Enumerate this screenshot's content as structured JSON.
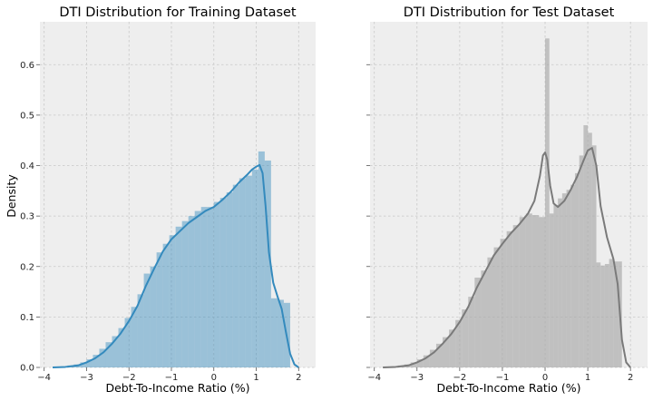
{
  "chart_data": [
    {
      "type": "bar",
      "title": "DTI Distribution for Training Dataset",
      "xlabel": "Debt-To-Income Ratio (%)",
      "ylabel": "Density",
      "xlim": [
        -4.1,
        2.4
      ],
      "ylim": [
        0,
        0.685
      ],
      "xticks": [
        -4,
        -3,
        -2,
        -1,
        0,
        1,
        2
      ],
      "yticks": [
        0.0,
        0.1,
        0.2,
        0.3,
        0.4,
        0.5,
        0.6
      ],
      "grid": true,
      "bar_color": "#348abd",
      "line_color": "#348abd",
      "histogram": {
        "x": [
          -3.75,
          -3.6,
          -3.45,
          -3.3,
          -3.15,
          -3.0,
          -2.85,
          -2.7,
          -2.55,
          -2.4,
          -2.25,
          -2.1,
          -1.95,
          -1.8,
          -1.65,
          -1.5,
          -1.35,
          -1.2,
          -1.05,
          -0.9,
          -0.75,
          -0.6,
          -0.45,
          -0.3,
          -0.15,
          0.0,
          0.15,
          0.3,
          0.45,
          0.6,
          0.75,
          0.9,
          1.05,
          1.2,
          1.35,
          1.5,
          1.65
        ],
        "width": 0.15,
        "values": [
          0.001,
          0.002,
          0.004,
          0.006,
          0.01,
          0.016,
          0.025,
          0.037,
          0.05,
          0.062,
          0.078,
          0.098,
          0.12,
          0.145,
          0.186,
          0.2,
          0.228,
          0.245,
          0.262,
          0.279,
          0.29,
          0.3,
          0.31,
          0.318,
          0.318,
          0.328,
          0.336,
          0.347,
          0.362,
          0.375,
          0.38,
          0.392,
          0.428,
          0.41,
          0.137,
          0.134,
          0.128
        ]
      },
      "kde": {
        "x": [
          -3.8,
          -3.5,
          -3.2,
          -3.0,
          -2.8,
          -2.6,
          -2.4,
          -2.2,
          -2.0,
          -1.8,
          -1.6,
          -1.4,
          -1.2,
          -1.0,
          -0.8,
          -0.6,
          -0.4,
          -0.2,
          0.0,
          0.2,
          0.4,
          0.6,
          0.8,
          0.9,
          1.0,
          1.08,
          1.15,
          1.22,
          1.3,
          1.4,
          1.5,
          1.6,
          1.7,
          1.8,
          1.9,
          2.0
        ],
        "y": [
          0.0,
          0.001,
          0.004,
          0.01,
          0.018,
          0.03,
          0.047,
          0.067,
          0.092,
          0.122,
          0.162,
          0.197,
          0.23,
          0.254,
          0.27,
          0.286,
          0.298,
          0.31,
          0.318,
          0.332,
          0.348,
          0.367,
          0.383,
          0.392,
          0.398,
          0.401,
          0.385,
          0.32,
          0.228,
          0.168,
          0.141,
          0.116,
          0.07,
          0.027,
          0.006,
          0.0
        ]
      }
    },
    {
      "type": "bar",
      "title": "DTI Distribution for Test Dataset",
      "xlabel": "Debt-To-Income Ratio (%)",
      "ylabel": "",
      "xlim": [
        -4.1,
        2.4
      ],
      "ylim": [
        0,
        0.685
      ],
      "xticks": [
        -4,
        -3,
        -2,
        -1,
        0,
        1,
        2
      ],
      "yticks": [
        0.0,
        0.1,
        0.2,
        0.3,
        0.4,
        0.5,
        0.6
      ],
      "grid": true,
      "bar_color": "#a8a8a8",
      "line_color": "#7a7a7a",
      "histogram": {
        "x": [
          -3.75,
          -3.6,
          -3.45,
          -3.3,
          -3.15,
          -3.0,
          -2.85,
          -2.7,
          -2.55,
          -2.4,
          -2.25,
          -2.1,
          -1.95,
          -1.8,
          -1.65,
          -1.5,
          -1.35,
          -1.2,
          -1.05,
          -0.9,
          -0.75,
          -0.6,
          -0.45,
          -0.3,
          -0.15,
          0.0,
          0.1,
          0.2,
          0.3,
          0.4,
          0.5,
          0.6,
          0.7,
          0.8,
          0.9,
          1.0,
          1.1,
          1.2,
          1.3,
          1.4,
          1.5,
          1.6,
          1.7
        ],
        "width": [
          0.15,
          0.15,
          0.15,
          0.15,
          0.15,
          0.15,
          0.15,
          0.15,
          0.15,
          0.15,
          0.15,
          0.15,
          0.15,
          0.15,
          0.15,
          0.15,
          0.15,
          0.15,
          0.15,
          0.15,
          0.15,
          0.15,
          0.15,
          0.15,
          0.15,
          0.1,
          0.1,
          0.1,
          0.1,
          0.1,
          0.1,
          0.1,
          0.1,
          0.1,
          0.1,
          0.1,
          0.1,
          0.1,
          0.1,
          0.1,
          0.1,
          0.1,
          0.1
        ],
        "values": [
          0.001,
          0.002,
          0.004,
          0.006,
          0.01,
          0.016,
          0.024,
          0.035,
          0.047,
          0.06,
          0.075,
          0.094,
          0.115,
          0.14,
          0.178,
          0.192,
          0.218,
          0.238,
          0.255,
          0.27,
          0.282,
          0.298,
          0.305,
          0.302,
          0.298,
          0.652,
          0.305,
          0.322,
          0.335,
          0.345,
          0.352,
          0.362,
          0.385,
          0.42,
          0.48,
          0.465,
          0.44,
          0.208,
          0.202,
          0.205,
          0.215,
          0.21,
          0.21
        ]
      },
      "kde": {
        "x": [
          -3.8,
          -3.5,
          -3.2,
          -3.0,
          -2.8,
          -2.6,
          -2.4,
          -2.2,
          -2.0,
          -1.8,
          -1.6,
          -1.4,
          -1.2,
          -1.0,
          -0.8,
          -0.6,
          -0.4,
          -0.25,
          -0.12,
          -0.05,
          0.0,
          0.05,
          0.12,
          0.2,
          0.3,
          0.45,
          0.6,
          0.75,
          0.9,
          1.0,
          1.1,
          1.2,
          1.3,
          1.45,
          1.6,
          1.7,
          1.8,
          1.9,
          2.0
        ],
        "y": [
          0.0,
          0.001,
          0.004,
          0.01,
          0.018,
          0.03,
          0.047,
          0.066,
          0.09,
          0.12,
          0.158,
          0.19,
          0.222,
          0.245,
          0.266,
          0.284,
          0.305,
          0.33,
          0.38,
          0.42,
          0.426,
          0.412,
          0.36,
          0.325,
          0.318,
          0.33,
          0.352,
          0.378,
          0.41,
          0.43,
          0.435,
          0.4,
          0.32,
          0.258,
          0.215,
          0.165,
          0.055,
          0.01,
          0.0
        ]
      }
    }
  ]
}
